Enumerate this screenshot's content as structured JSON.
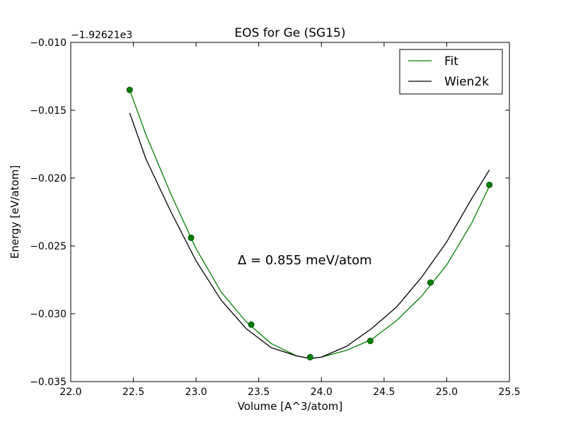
{
  "chart_data": {
    "type": "line",
    "title": "EOS for Ge (SG15)",
    "xlabel": "Volume [A^3/atom]",
    "ylabel": "Energy [eV/atom]",
    "y_offset_label": "−1.92621e3",
    "annotation": "Δ = 0.855 meV/atom",
    "xlim": [
      22.0,
      25.5
    ],
    "ylim": [
      -0.035,
      -0.01
    ],
    "xticks": [
      22.0,
      22.5,
      23.0,
      23.5,
      24.0,
      24.5,
      25.0,
      25.5
    ],
    "xtick_labels": [
      "22.0",
      "22.5",
      "23.0",
      "23.5",
      "24.0",
      "24.5",
      "25.0",
      "25.5"
    ],
    "yticks": [
      -0.035,
      -0.03,
      -0.025,
      -0.02,
      -0.015,
      -0.01
    ],
    "ytick_labels": [
      "−0.035",
      "−0.030",
      "−0.025",
      "−0.020",
      "−0.015",
      "−0.010"
    ],
    "grid": false,
    "legend_position": "top-right",
    "series": [
      {
        "name": "Fit",
        "style": "line",
        "color": "#008000",
        "x": [
          22.47,
          22.6,
          22.8,
          23.0,
          23.2,
          23.4,
          23.6,
          23.8,
          23.91,
          24.0,
          24.2,
          24.4,
          24.6,
          24.8,
          25.0,
          25.2,
          25.34
        ],
        "y": [
          -0.0135,
          -0.0168,
          -0.0212,
          -0.0252,
          -0.0284,
          -0.0306,
          -0.0322,
          -0.0331,
          -0.0333,
          -0.0332,
          -0.0327,
          -0.0319,
          -0.0305,
          -0.0287,
          -0.0264,
          -0.0233,
          -0.0206
        ]
      },
      {
        "name": "Wien2k",
        "style": "line",
        "color": "#000000",
        "x": [
          22.47,
          22.6,
          22.8,
          23.0,
          23.2,
          23.4,
          23.6,
          23.8,
          23.91,
          24.0,
          24.2,
          24.4,
          24.6,
          24.8,
          25.0,
          25.2,
          25.34
        ],
        "y": [
          -0.0152,
          -0.0186,
          -0.0225,
          -0.0261,
          -0.029,
          -0.0311,
          -0.0325,
          -0.0331,
          -0.0333,
          -0.0332,
          -0.0324,
          -0.0311,
          -0.0295,
          -0.0273,
          -0.0247,
          -0.0215,
          -0.0194
        ]
      },
      {
        "name": "",
        "style": "markers",
        "color": "#008000",
        "edgecolor": "#004d00",
        "x": [
          22.47,
          22.96,
          23.44,
          23.91,
          24.39,
          24.87,
          25.34
        ],
        "y": [
          -0.0135,
          -0.0244,
          -0.0308,
          -0.0332,
          -0.032,
          -0.0277,
          -0.0205
        ]
      }
    ]
  }
}
